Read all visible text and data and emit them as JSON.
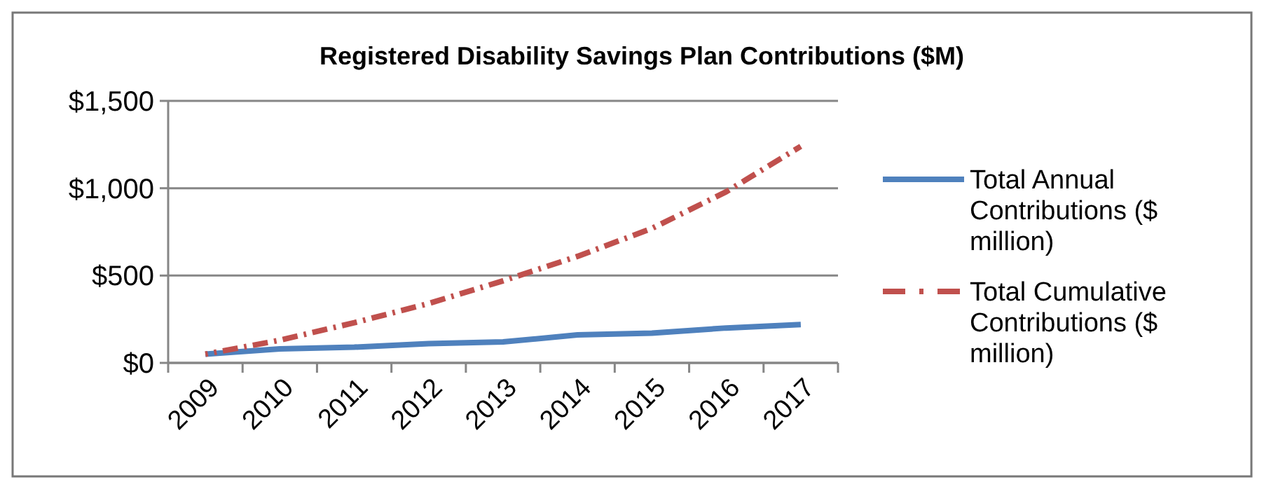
{
  "chart_data": {
    "type": "line",
    "title": "Registered Disability Savings Plan Contributions ($M)",
    "categories": [
      "2009",
      "2010",
      "2011",
      "2012",
      "2013",
      "2014",
      "2015",
      "2016",
      "2017"
    ],
    "series": [
      {
        "name": "Total Annual Contributions  ($ million)",
        "color": "#4f81bd",
        "line_style": "solid",
        "values": [
          50,
          80,
          90,
          110,
          120,
          160,
          170,
          200,
          220
        ]
      },
      {
        "name": "Total Cumulative Contributions   ($ million)",
        "color": "#c0504d",
        "line_style": "dashed",
        "values": [
          50,
          130,
          230,
          340,
          470,
          610,
          770,
          980,
          1240
        ]
      }
    ],
    "ylim": [
      0,
      1500
    ],
    "yticks": [
      {
        "value": 0,
        "label": "$0"
      },
      {
        "value": 500,
        "label": "$500"
      },
      {
        "value": 1000,
        "label": "$1,000"
      },
      {
        "value": 1500,
        "label": "$1,500"
      }
    ],
    "grid": "y",
    "legend": "right",
    "marker": "none"
  }
}
